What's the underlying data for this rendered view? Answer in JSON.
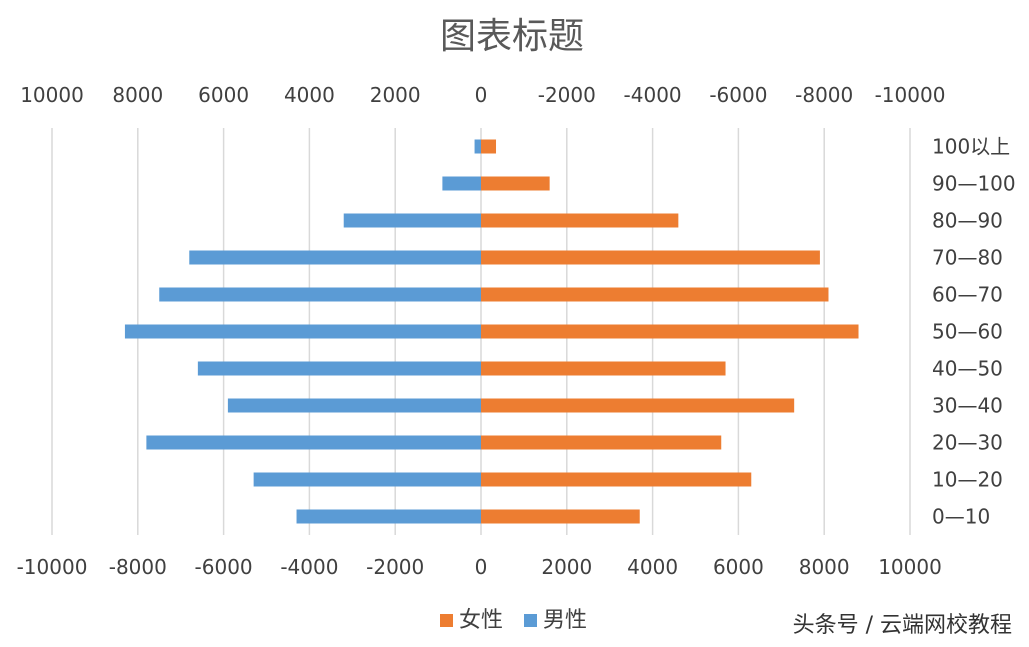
{
  "chart_data": {
    "type": "bar",
    "orientation": "horizontal",
    "title": "图表标题",
    "categories": [
      "0—10",
      "10—20",
      "20—30",
      "30—40",
      "40—50",
      "50—60",
      "60—70",
      "70—80",
      "80—90",
      "90—100",
      "100以上"
    ],
    "series": [
      {
        "name": "女性",
        "color": "#ED7D31",
        "values": [
          3700,
          6300,
          5600,
          7300,
          5700,
          8800,
          8100,
          7900,
          4600,
          1600,
          350
        ]
      },
      {
        "name": "男性",
        "color": "#5B9BD5",
        "values": [
          -4300,
          -5300,
          -7800,
          -5900,
          -6600,
          -8300,
          -7500,
          -6800,
          -3200,
          -900,
          -150
        ]
      }
    ],
    "xlim": [
      -10000,
      10000
    ],
    "bottom_axis_ticks": [
      "-10000",
      "-8000",
      "-6000",
      "-4000",
      "-2000",
      "0",
      "2000",
      "4000",
      "6000",
      "8000",
      "10000"
    ],
    "top_axis_ticks": [
      "10000",
      "8000",
      "6000",
      "4000",
      "2000",
      "0",
      "-2000",
      "-4000",
      "-6000",
      "-8000",
      "-10000"
    ],
    "gridlines": true,
    "legend_position": "bottom"
  },
  "watermark": "头条号 / 云端网校教程"
}
